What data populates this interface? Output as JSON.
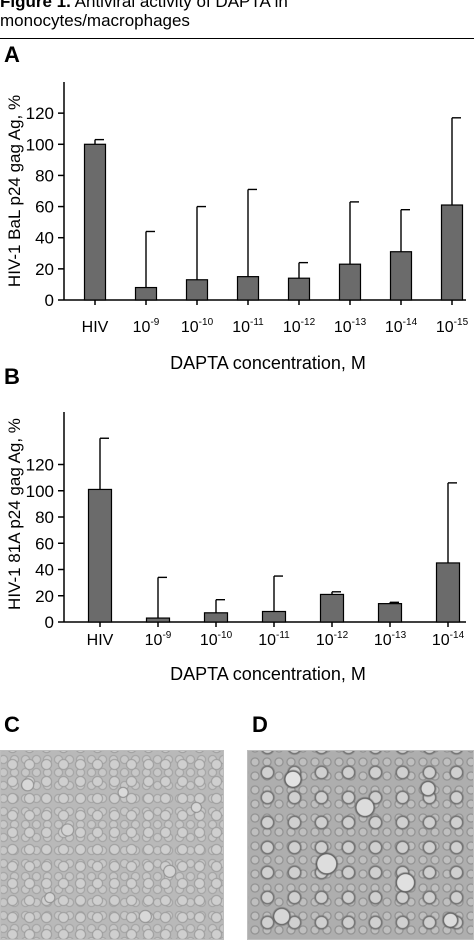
{
  "caption": {
    "label": "Figure 1.",
    "text": "Antiviral activity of DAPTA in monocytes/macrophages"
  },
  "panels": {
    "a": "A",
    "b": "B",
    "c": "C",
    "d": "D"
  },
  "colors": {
    "bar_fill": "#6b6b6b",
    "bar_stroke": "#000000",
    "axis": "#000000"
  },
  "chart_data": [
    {
      "type": "bar",
      "panel": "A",
      "categories": [
        "HIV",
        "10-9",
        "10-10",
        "10-11",
        "10-12",
        "10-13",
        "10-14",
        "10-15"
      ],
      "category_labels": [
        {
          "base": "HIV",
          "exp": ""
        },
        {
          "base": "10",
          "exp": "-9"
        },
        {
          "base": "10",
          "exp": "-10"
        },
        {
          "base": "10",
          "exp": "-11"
        },
        {
          "base": "10",
          "exp": "-12"
        },
        {
          "base": "10",
          "exp": "-13"
        },
        {
          "base": "10",
          "exp": "-14"
        },
        {
          "base": "10",
          "exp": "-15"
        }
      ],
      "values": [
        100,
        8,
        13,
        15,
        14,
        23,
        31,
        61
      ],
      "error_upper": [
        103,
        44,
        60,
        71,
        24,
        63,
        58,
        117
      ],
      "yticks": [
        0,
        20,
        40,
        60,
        80,
        100,
        120
      ],
      "ylim": [
        0,
        140
      ],
      "ylabel": "HIV-1 BaL p24 gag Ag, %",
      "xlabel": "DAPTA concentration, M",
      "grid": false
    },
    {
      "type": "bar",
      "panel": "B",
      "categories": [
        "HIV",
        "10-9",
        "10-10",
        "10-11",
        "10-12",
        "10-13",
        "10-14"
      ],
      "category_labels": [
        {
          "base": "HIV",
          "exp": ""
        },
        {
          "base": "10",
          "exp": "-9"
        },
        {
          "base": "10",
          "exp": "-10"
        },
        {
          "base": "10",
          "exp": "-11"
        },
        {
          "base": "10",
          "exp": "-12"
        },
        {
          "base": "10",
          "exp": "-13"
        },
        {
          "base": "10",
          "exp": "-14"
        }
      ],
      "values": [
        101,
        3,
        7,
        8,
        21,
        14,
        45
      ],
      "error_upper": [
        140,
        34,
        17,
        35,
        23,
        15,
        106
      ],
      "yticks": [
        0,
        20,
        40,
        60,
        80,
        100,
        120
      ],
      "ylim": [
        0,
        160
      ],
      "ylabel": "HIV-1 81A p24 gag Ag, %",
      "xlabel": "DAPTA concentration, M",
      "grid": false
    }
  ]
}
